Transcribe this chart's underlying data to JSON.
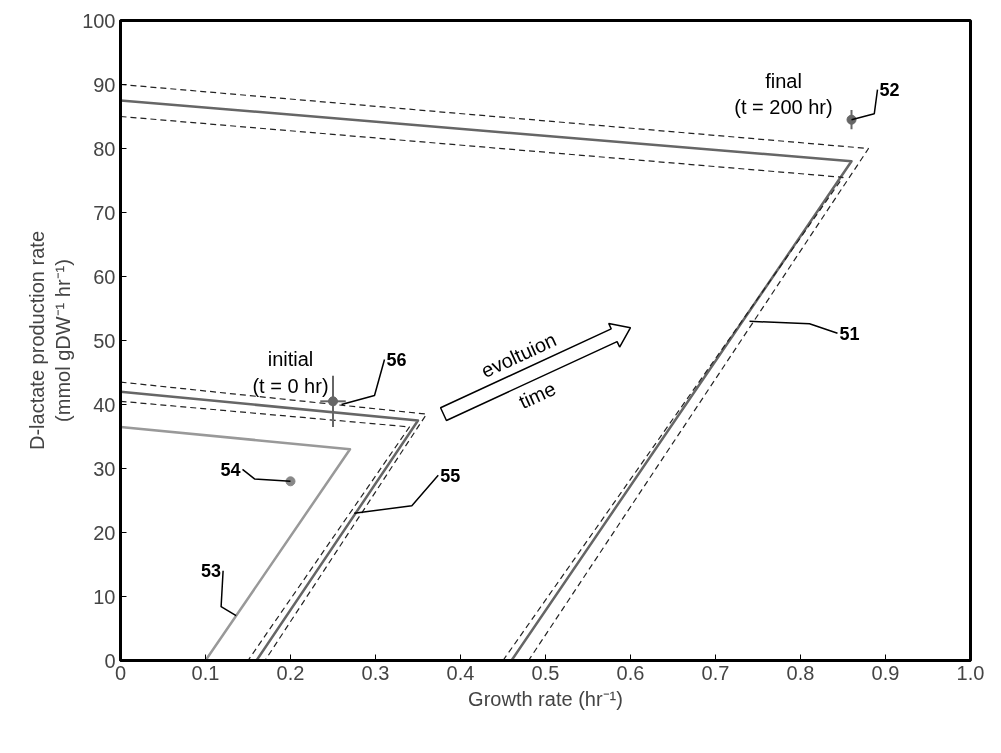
{
  "chart_data": {
    "type": "line",
    "xlabel": "Growth rate (hr⁻¹)",
    "ylabel": "D-lactate production rate\n(mmol gDW⁻¹ hr⁻¹)",
    "xlim": [
      0,
      1
    ],
    "ylim": [
      0,
      100
    ],
    "xticks": [
      0,
      0.1,
      0.2,
      0.3,
      0.4,
      0.5,
      0.6,
      0.7,
      0.8,
      0.9,
      {
        "value": 1,
        "label": "1.0"
      }
    ],
    "yticks": [
      0,
      10,
      20,
      30,
      40,
      50,
      60,
      70,
      80,
      90,
      100
    ],
    "grid": false,
    "series": [
      {
        "color": "#666666",
        "line_style": "solid",
        "x": [
          0,
          0.86,
          0.46,
          0.44
        ],
        "values": [
          87.5,
          78,
          0,
          0
        ]
      },
      {
        "color": "#222222",
        "line_style": "dashed",
        "x": [
          0,
          0.88,
          0.48
        ],
        "values": [
          90,
          80,
          0
        ]
      },
      {
        "color": "#222222",
        "line_style": "dashed",
        "x": [
          0,
          0.85,
          0.45
        ],
        "values": [
          85,
          75.5,
          0
        ]
      },
      {
        "color": "#666666",
        "line_style": "solid",
        "x": [
          0,
          0.35,
          0.16
        ],
        "values": [
          42,
          37.5,
          0
        ]
      },
      {
        "color": "#222222",
        "line_style": "dashed",
        "x": [
          0,
          0.36,
          0.17
        ],
        "values": [
          43.5,
          38.5,
          0
        ]
      },
      {
        "color": "#222222",
        "line_style": "dashed",
        "x": [
          0,
          0.34,
          0.15
        ],
        "values": [
          40.5,
          36.5,
          0
        ]
      },
      {
        "color": "#999999",
        "line_style": "solid",
        "x": [
          0,
          0.27,
          0.1
        ],
        "values": [
          36.5,
          33,
          0
        ]
      },
      {
        "type": "scatter",
        "color": "#666666",
        "marker": "circle",
        "x": [
          0.86
        ],
        "values": [
          84.5
        ],
        "errors": [
          1.5
        ]
      },
      {
        "type": "scatter",
        "color": "#666666",
        "marker": "circle",
        "x": [
          0.25
        ],
        "values": [
          40.5
        ],
        "errors": [
          4
        ],
        "xerrors": [
          0.015
        ]
      },
      {
        "type": "scatter",
        "color": "#888888",
        "marker": "circle",
        "x": [
          0.2
        ],
        "values": [
          28
        ]
      }
    ],
    "annotations": [
      {
        "text": "51",
        "x": 0.74,
        "y": 53
      },
      {
        "text": "52",
        "x": 0.86,
        "y": 84.5
      },
      {
        "text": "53",
        "x": 0.136,
        "y": 7
      },
      {
        "text": "54",
        "x": 0.2,
        "y": 28
      },
      {
        "text": "55",
        "x": 0.275,
        "y": 23
      },
      {
        "text": "56",
        "x": 0.26,
        "y": 40
      },
      "final\n(t = 200 hr)",
      "initial\n(t = 0 hr)",
      "evoltuion",
      "time"
    ]
  }
}
